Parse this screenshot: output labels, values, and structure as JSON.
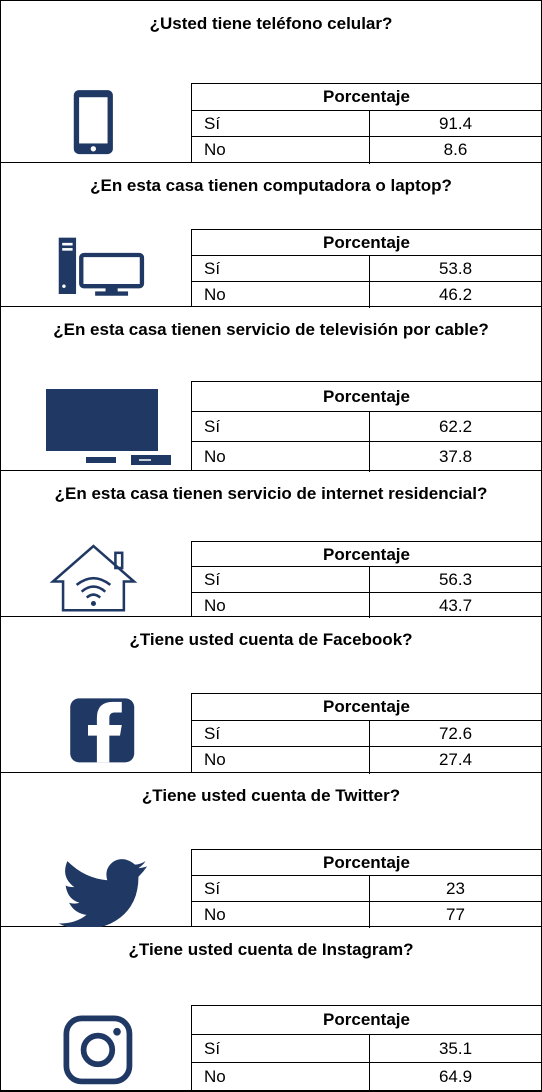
{
  "sections": [
    {
      "question": "¿Usted tiene teléfono celular?",
      "header": "Porcentaje",
      "rows": [
        {
          "label": "Sí",
          "value": 91.4
        },
        {
          "label": "No",
          "value": 8.6
        }
      ]
    },
    {
      "question": "¿En esta casa tienen computadora o laptop?",
      "header": "Porcentaje",
      "rows": [
        {
          "label": "Sí",
          "value": 53.8
        },
        {
          "label": "No",
          "value": 46.2
        }
      ]
    },
    {
      "question": "¿En esta casa tienen servicio de televisión por cable?",
      "header": "Porcentaje",
      "rows": [
        {
          "label": "Sí",
          "value": 62.2
        },
        {
          "label": "No",
          "value": 37.8
        }
      ]
    },
    {
      "question": "¿En esta casa tienen servicio de internet residencial?",
      "header": "Porcentaje",
      "rows": [
        {
          "label": "Sí",
          "value": 56.3
        },
        {
          "label": "No",
          "value": 43.7
        }
      ]
    },
    {
      "question": "¿Tiene usted cuenta de Facebook?",
      "header": "Porcentaje",
      "rows": [
        {
          "label": "Sí",
          "value": 72.6
        },
        {
          "label": "No",
          "value": 27.4
        }
      ]
    },
    {
      "question": "¿Tiene usted cuenta de Twitter?",
      "header": "Porcentaje",
      "rows": [
        {
          "label": "Sí",
          "value": 23
        },
        {
          "label": "No",
          "value": 77
        }
      ]
    },
    {
      "question": "¿Tiene usted cuenta de Instagram?",
      "header": "Porcentaje",
      "rows": [
        {
          "label": "Sí",
          "value": 35.1
        },
        {
          "label": "No",
          "value": 64.9
        }
      ]
    }
  ]
}
